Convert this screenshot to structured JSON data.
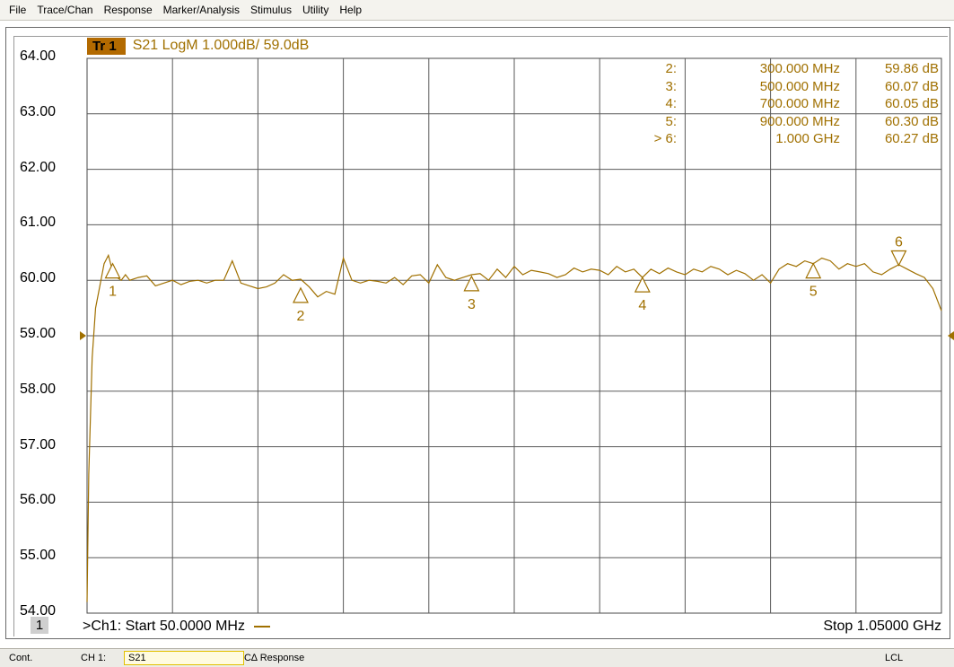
{
  "menu": [
    "File",
    "Trace/Chan",
    "Response",
    "Marker/Analysis",
    "Stimulus",
    "Utility",
    "Help"
  ],
  "trace": {
    "badge": "Tr 1",
    "description": "S21 LogM 1.000dB/  59.0dB",
    "color": "#a07000"
  },
  "markers": [
    {
      "id": "2:",
      "freq": "300.000 MHz",
      "value": "59.86 dB"
    },
    {
      "id": "3:",
      "freq": "500.000 MHz",
      "value": "60.07 dB"
    },
    {
      "id": "4:",
      "freq": "700.000 MHz",
      "value": "60.05 dB"
    },
    {
      "id": "5:",
      "freq": "900.000 MHz",
      "value": "60.30 dB"
    },
    {
      "id": "> 6:",
      "freq": "1.000 GHz",
      "value": "60.27 dB"
    }
  ],
  "chart_data": {
    "type": "line",
    "title": "S21 LogM 1.000dB/  59.0dB",
    "xlabel": "",
    "ylabel": "",
    "xlim_mhz": [
      50,
      1050
    ],
    "ylim": [
      54,
      64
    ],
    "reference_level": 59.0,
    "yticks": [
      "64.00",
      "63.00",
      "62.00",
      "61.00",
      "60.00",
      "59.00",
      "58.00",
      "57.00",
      "56.00",
      "55.00",
      "54.00"
    ],
    "grid": true,
    "series": [
      {
        "x": [
          50,
          52,
          56,
          60,
          65,
          70,
          75,
          80,
          85,
          90,
          95,
          100,
          110,
          120,
          130,
          140,
          150,
          160,
          170,
          180,
          190,
          200,
          210,
          220,
          230,
          240,
          250,
          260,
          270,
          280,
          290,
          300,
          310,
          320,
          330,
          340,
          350,
          360,
          370,
          380,
          390,
          400,
          410,
          420,
          430,
          440,
          450,
          460,
          470,
          480,
          490,
          500,
          510,
          520,
          530,
          540,
          550,
          560,
          570,
          580,
          590,
          600,
          610,
          620,
          630,
          640,
          650,
          660,
          670,
          680,
          690,
          700,
          710,
          720,
          730,
          740,
          750,
          760,
          770,
          780,
          790,
          800,
          810,
          820,
          830,
          840,
          850,
          860,
          870,
          880,
          890,
          900,
          910,
          920,
          930,
          940,
          950,
          960,
          970,
          980,
          990,
          1000,
          1010,
          1020,
          1030,
          1040,
          1050
        ],
        "y": [
          54.2,
          56.5,
          58.6,
          59.5,
          59.9,
          60.3,
          60.45,
          60.15,
          60.05,
          60.0,
          60.1,
          60.0,
          60.05,
          60.08,
          59.9,
          59.95,
          60.0,
          59.92,
          59.98,
          60.0,
          59.95,
          60.0,
          60.0,
          60.35,
          59.95,
          59.9,
          59.85,
          59.88,
          59.95,
          60.1,
          60.0,
          60.02,
          59.88,
          59.7,
          59.8,
          59.75,
          60.4,
          60.0,
          59.95,
          60.0,
          59.98,
          59.95,
          60.05,
          59.92,
          60.08,
          60.1,
          59.95,
          60.28,
          60.05,
          60.0,
          60.05,
          60.1,
          60.12,
          60.0,
          60.2,
          60.05,
          60.25,
          60.1,
          60.18,
          60.15,
          60.12,
          60.05,
          60.1,
          60.22,
          60.15,
          60.2,
          60.18,
          60.1,
          60.25,
          60.15,
          60.2,
          60.05,
          60.2,
          60.12,
          60.22,
          60.15,
          60.1,
          60.2,
          60.15,
          60.25,
          60.2,
          60.1,
          60.18,
          60.12,
          60.0,
          60.1,
          59.95,
          60.2,
          60.3,
          60.25,
          60.35,
          60.3,
          60.4,
          60.35,
          60.2,
          60.3,
          60.25,
          60.3,
          60.15,
          60.1,
          60.2,
          60.28,
          60.2,
          60.12,
          60.05,
          59.85,
          59.45
        ]
      }
    ],
    "marker_points": [
      {
        "label": "1",
        "x": 80,
        "y": 60.3,
        "type": "up"
      },
      {
        "label": "2",
        "x": 300,
        "y": 59.86,
        "type": "up"
      },
      {
        "label": "3",
        "x": 500,
        "y": 60.07,
        "type": "up"
      },
      {
        "label": "4",
        "x": 700,
        "y": 60.05,
        "type": "up"
      },
      {
        "label": "5",
        "x": 900,
        "y": 60.3,
        "type": "up"
      },
      {
        "label": "6",
        "x": 1000,
        "y": 60.27,
        "type": "down"
      }
    ]
  },
  "channel": {
    "number": "1",
    "start": ">Ch1: Start  50.0000 MHz",
    "stop": "Stop  1.05000 GHz"
  },
  "status": {
    "mode": "Cont.",
    "channel": "CH 1:",
    "parameter": "S21",
    "cal": "C∆ Response",
    "remote": "LCL"
  }
}
